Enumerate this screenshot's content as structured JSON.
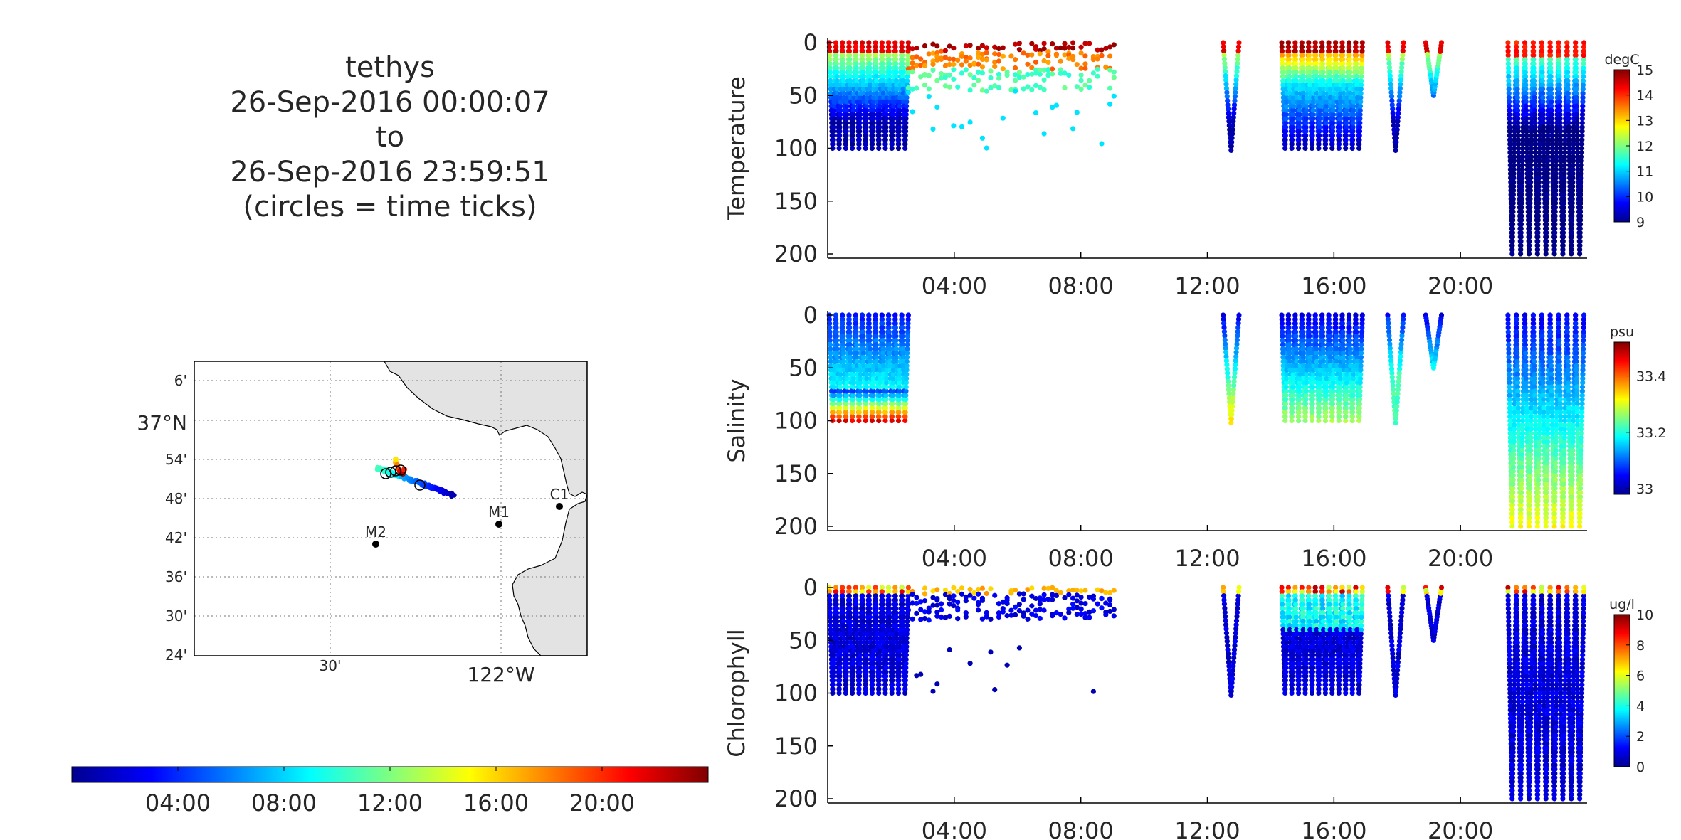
{
  "title": {
    "lines": [
      "tethys",
      "26-Sep-2016 00:00:07",
      "to",
      "26-Sep-2016 23:59:51",
      "(circles = time ticks)"
    ]
  },
  "map": {
    "lat_ticks": [
      "6'",
      "37°N",
      "54'",
      "48'",
      "42'",
      "36'",
      "30'",
      "24'"
    ],
    "lon_ticks": [
      "30'",
      "122°W"
    ],
    "moorings": [
      {
        "name": "C1",
        "lon": -121.84,
        "lat": 36.8
      },
      {
        "name": "M1",
        "lon": -122.03,
        "lat": 36.75
      },
      {
        "name": "M2",
        "lon": -122.39,
        "lat": 36.7
      }
    ],
    "land_color": "#e3e3e3",
    "track_color_start": "#00008f",
    "track_color_end": "#800000"
  },
  "time_colorbar": {
    "ticks": [
      "04:00",
      "08:00",
      "12:00",
      "16:00",
      "20:00"
    ],
    "range_hours": [
      0,
      24
    ]
  },
  "chart_data": [
    {
      "type": "scatter",
      "title": "",
      "ylabel": "Temperature",
      "xlabel": "",
      "x_ticks": [
        "04:00",
        "08:00",
        "12:00",
        "16:00",
        "20:00"
      ],
      "x_range_hours": [
        0,
        24
      ],
      "ylim": [
        200,
        0
      ],
      "y_ticks": [
        "0",
        "50",
        "100",
        "150",
        "200"
      ],
      "colorbar": {
        "unit": "degC",
        "ticks": [
          "15",
          "14",
          "13",
          "12",
          "11",
          "10",
          "9"
        ],
        "range": [
          9,
          15
        ]
      },
      "segments": [
        {
          "start_h": 0.05,
          "end_h": 2.55,
          "max_depth": 100,
          "profiles": 12
        },
        {
          "start_h": 2.55,
          "end_h": 9.1,
          "max_depth": 100,
          "profiles": 0
        },
        {
          "start_h": 12.5,
          "end_h": 13.0,
          "max_depth": 102,
          "profiles": 1
        },
        {
          "start_h": 14.35,
          "end_h": 16.9,
          "max_depth": 100,
          "profiles": 12
        },
        {
          "start_h": 17.7,
          "end_h": 18.2,
          "max_depth": 102,
          "profiles": 1
        },
        {
          "start_h": 18.9,
          "end_h": 19.4,
          "max_depth": 50,
          "profiles": 1
        },
        {
          "start_h": 21.5,
          "end_h": 23.9,
          "max_depth": 200,
          "profiles": 9
        }
      ]
    },
    {
      "type": "scatter",
      "title": "",
      "ylabel": "Salinity",
      "xlabel": "",
      "x_ticks": [
        "04:00",
        "08:00",
        "12:00",
        "16:00",
        "20:00"
      ],
      "x_range_hours": [
        0,
        24
      ],
      "ylim": [
        200,
        0
      ],
      "y_ticks": [
        "0",
        "50",
        "100",
        "150",
        "200"
      ],
      "colorbar": {
        "unit": "psu",
        "ticks": [
          "33.4",
          "33.2",
          "33"
        ],
        "range": [
          32.98,
          33.52
        ]
      },
      "segments": [
        {
          "start_h": 0.05,
          "end_h": 2.55,
          "max_depth": 100,
          "profiles": 12
        },
        {
          "start_h": 12.5,
          "end_h": 13.0,
          "max_depth": 102,
          "profiles": 1
        },
        {
          "start_h": 14.35,
          "end_h": 16.9,
          "max_depth": 100,
          "profiles": 12
        },
        {
          "start_h": 17.7,
          "end_h": 18.2,
          "max_depth": 102,
          "profiles": 1
        },
        {
          "start_h": 18.9,
          "end_h": 19.4,
          "max_depth": 50,
          "profiles": 1
        },
        {
          "start_h": 21.5,
          "end_h": 23.9,
          "max_depth": 200,
          "profiles": 9
        }
      ]
    },
    {
      "type": "scatter",
      "title": "",
      "ylabel": "Chlorophyll",
      "xlabel": "",
      "x_ticks": [
        "04:00",
        "08:00",
        "12:00",
        "16:00",
        "20:00"
      ],
      "x_range_hours": [
        0,
        24
      ],
      "ylim": [
        200,
        0
      ],
      "y_ticks": [
        "0",
        "50",
        "100",
        "150",
        "200"
      ],
      "colorbar": {
        "unit": "ug/l",
        "ticks": [
          "10",
          "8",
          "6",
          "4",
          "2",
          "0"
        ],
        "range": [
          0,
          10
        ]
      },
      "segments": [
        {
          "start_h": 0.05,
          "end_h": 2.55,
          "max_depth": 100,
          "profiles": 12
        },
        {
          "start_h": 2.55,
          "end_h": 9.1,
          "max_depth": 100,
          "profiles": 0
        },
        {
          "start_h": 12.5,
          "end_h": 13.0,
          "max_depth": 102,
          "profiles": 1
        },
        {
          "start_h": 14.35,
          "end_h": 16.9,
          "max_depth": 100,
          "profiles": 12
        },
        {
          "start_h": 17.7,
          "end_h": 18.2,
          "max_depth": 102,
          "profiles": 1
        },
        {
          "start_h": 18.9,
          "end_h": 19.4,
          "max_depth": 50,
          "profiles": 1
        },
        {
          "start_h": 21.5,
          "end_h": 23.9,
          "max_depth": 200,
          "profiles": 9
        }
      ]
    }
  ]
}
